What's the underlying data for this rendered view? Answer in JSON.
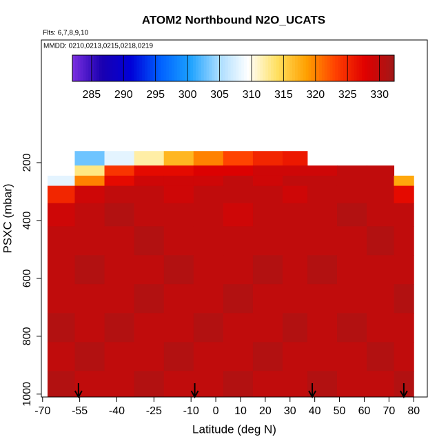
{
  "chart_data": {
    "type": "heatmap",
    "title": "ATOM2 Northbound N2O_UCATS",
    "subtitle": "Flts: 6,7,8,9,10",
    "annotation": "MMDD: 0210,0213,0215,0218,0219",
    "x_label": "Latitude (deg N)",
    "y_label": "PSXC (mbar)",
    "xlim": [
      -70.5,
      85.5
    ],
    "ylim": [
      1010,
      -224
    ],
    "xticks": [
      -70,
      -55,
      -40,
      -25,
      -10,
      0,
      10,
      20,
      30,
      40,
      50,
      60,
      70,
      80
    ],
    "yticks": [
      200,
      400,
      600,
      800,
      1000
    ],
    "lat_edges": [
      -68,
      -57,
      -45,
      -33,
      -21,
      -9,
      3,
      15,
      27,
      37,
      49,
      61,
      72,
      80
    ],
    "p_edges": [
      160,
      210,
      245,
      280,
      340,
      420,
      520,
      620,
      720,
      820,
      920,
      1010
    ],
    "values": [
      [
        null,
        303,
        308,
        312,
        317,
        320,
        323,
        325,
        326,
        null,
        null,
        null,
        null
      ],
      [
        null,
        313,
        324,
        327,
        327,
        328,
        328,
        329,
        329,
        329,
        330,
        330,
        null
      ],
      [
        308,
        320,
        327,
        329,
        329,
        329,
        330,
        329,
        330,
        330,
        330,
        330,
        318
      ],
      [
        325,
        329,
        330,
        330,
        329,
        330,
        330,
        330,
        329,
        330,
        330,
        330,
        327
      ],
      [
        329,
        330,
        331,
        330,
        330,
        330,
        329,
        330,
        330,
        330,
        331,
        330,
        330
      ],
      [
        330,
        330,
        330,
        331,
        330,
        330,
        330,
        330,
        330,
        330,
        330,
        331,
        330
      ],
      [
        330,
        331,
        330,
        330,
        331,
        330,
        330,
        331,
        330,
        331,
        330,
        330,
        330
      ],
      [
        330,
        330,
        330,
        331,
        330,
        330,
        331,
        330,
        330,
        330,
        330,
        330,
        331
      ],
      [
        331,
        330,
        331,
        330,
        330,
        331,
        330,
        330,
        331,
        330,
        331,
        330,
        330
      ],
      [
        330,
        331,
        330,
        330,
        331,
        330,
        330,
        331,
        330,
        330,
        330,
        331,
        330
      ],
      [
        331,
        330,
        330,
        331,
        330,
        330,
        331,
        330,
        330,
        331,
        330,
        330,
        331
      ]
    ],
    "arrows": [
      -55.5,
      -8.5,
      39,
      76
    ],
    "colorbar": {
      "lim": [
        282,
        332.3
      ],
      "ticks": [
        285,
        290,
        295,
        300,
        305,
        310,
        315,
        320,
        325,
        330
      ],
      "colors": [
        "#7b2fe0",
        "#1a00b0",
        "#0000d8",
        "#0060ff",
        "#1aa0ff",
        "#a8dcff",
        "#ffffff",
        "#ffe060",
        "#ffa000",
        "#ff4000",
        "#e00000",
        "#a01818"
      ]
    }
  }
}
